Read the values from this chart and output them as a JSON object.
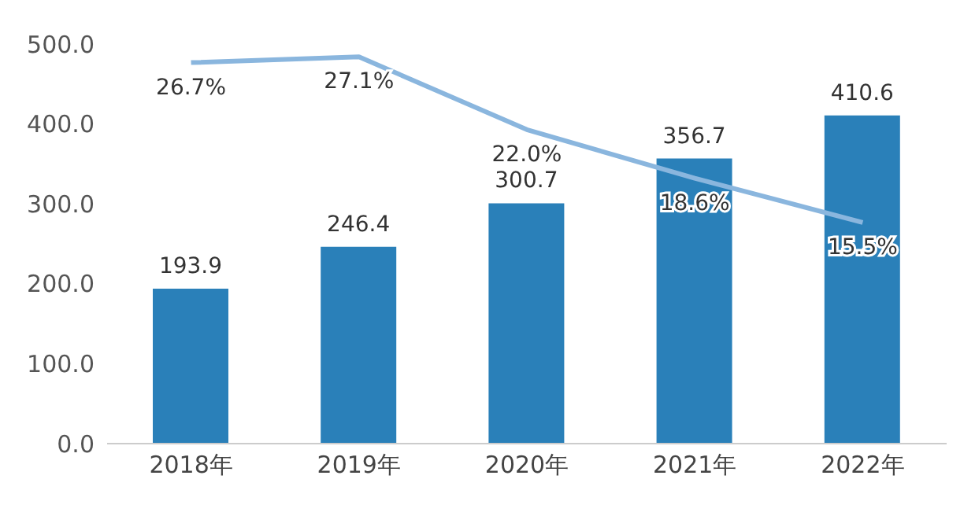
{
  "chart_data": {
    "type": "bar",
    "categories": [
      "2018年",
      "2019年",
      "2020年",
      "2021年",
      "2022年"
    ],
    "series": [
      {
        "color": "#2a80b9",
        "values": [
          193.9,
          246.4,
          300.7,
          356.7,
          410.6
        ],
        "value_labels": [
          "193.9",
          "246.4",
          "300.7",
          "356.7",
          "410.6"
        ]
      },
      {
        "type": "line",
        "axis": "y2",
        "color": "#8ab6de",
        "values": [
          26.7,
          27.1,
          22.0,
          18.6,
          15.5
        ],
        "value_labels": [
          "26.7%",
          "27.1%",
          "22.0%",
          "18.6%",
          "15.5%"
        ]
      }
    ],
    "ylim": [
      0,
      500
    ],
    "yticks": [
      {
        "value": 0,
        "label": "0.0"
      },
      {
        "value": 100,
        "label": "100.0"
      },
      {
        "value": 200,
        "label": "200.0"
      },
      {
        "value": 300,
        "label": "300.0"
      },
      {
        "value": 400,
        "label": "400.0"
      },
      {
        "value": 500,
        "label": "500.0"
      }
    ],
    "tick_labels": [
      "x",
      "y"
    ],
    "marker": "none",
    "line_style": "solid"
  }
}
